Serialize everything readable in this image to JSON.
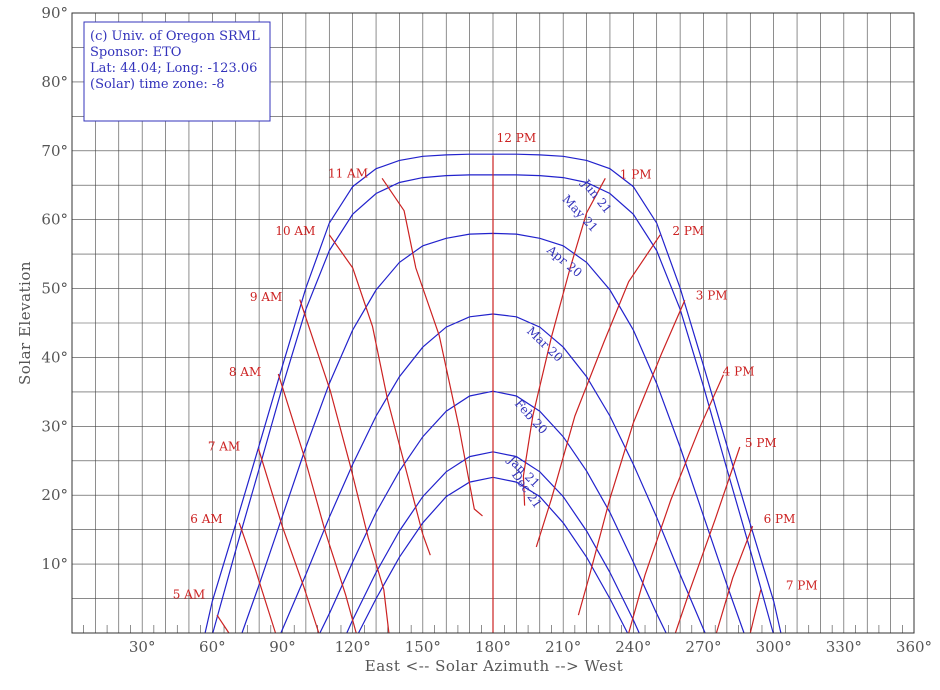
{
  "info_box": {
    "lines": [
      "(c) Univ. of Oregon SRML",
      "Sponsor: ETO",
      "Lat: 44.04; Long: -123.06",
      "(Solar) time zone: -8"
    ]
  },
  "chart_data": {
    "type": "line",
    "xlabel": "East <-- Solar Azimuth --> West",
    "ylabel": "Solar Elevation",
    "xlim": [
      0,
      360
    ],
    "ylim": [
      0,
      90
    ],
    "grid": true,
    "x_tick_labels": [
      {
        "value": 30,
        "label": "30°"
      },
      {
        "value": 60,
        "label": "60°"
      },
      {
        "value": 90,
        "label": "90°"
      },
      {
        "value": 120,
        "label": "120°"
      },
      {
        "value": 150,
        "label": "150°"
      },
      {
        "value": 180,
        "label": "180°"
      },
      {
        "value": 210,
        "label": "210°"
      },
      {
        "value": 240,
        "label": "240°"
      },
      {
        "value": 270,
        "label": "270°"
      },
      {
        "value": 300,
        "label": "300°"
      },
      {
        "value": 330,
        "label": "330°"
      },
      {
        "value": 360,
        "label": "360°"
      }
    ],
    "y_tick_labels": [
      {
        "value": 10,
        "label": "10°"
      },
      {
        "value": 20,
        "label": "20°"
      },
      {
        "value": 30,
        "label": "30°"
      },
      {
        "value": 40,
        "label": "40°"
      },
      {
        "value": 50,
        "label": "50°"
      },
      {
        "value": 60,
        "label": "60°"
      },
      {
        "value": 70,
        "label": "70°"
      },
      {
        "value": 80,
        "label": "80°"
      },
      {
        "value": 90,
        "label": "90°"
      }
    ],
    "colors": {
      "date_lines": "#2222cc",
      "hour_lines": "#cc2222",
      "grid": "#444444"
    },
    "date_series": [
      {
        "name": "Jun 21",
        "points": [
          [
            56.9,
            0
          ],
          [
            60,
            4.6
          ],
          [
            70,
            15.8
          ],
          [
            80,
            27.2
          ],
          [
            90,
            38.8
          ],
          [
            100,
            50.1
          ],
          [
            110,
            59.5
          ],
          [
            120,
            64.8
          ],
          [
            130,
            67.4
          ],
          [
            140,
            68.6
          ],
          [
            150,
            69.2
          ],
          [
            160,
            69.4
          ],
          [
            170,
            69.5
          ],
          [
            180,
            69.5
          ],
          [
            190,
            69.5
          ],
          [
            200,
            69.4
          ],
          [
            210,
            69.2
          ],
          [
            220,
            68.6
          ],
          [
            230,
            67.4
          ],
          [
            240,
            64.8
          ],
          [
            250,
            59.5
          ],
          [
            260,
            50.1
          ],
          [
            270,
            38.8
          ],
          [
            280,
            27.2
          ],
          [
            290,
            15.8
          ],
          [
            300,
            4.6
          ],
          [
            303.1,
            0
          ]
        ]
      },
      {
        "name": "May 21",
        "points": [
          [
            60.2,
            0
          ],
          [
            70,
            12
          ],
          [
            80,
            23.8
          ],
          [
            90,
            35.8
          ],
          [
            100,
            47
          ],
          [
            110,
            55.5
          ],
          [
            120,
            60.8
          ],
          [
            130,
            63.8
          ],
          [
            140,
            65.4
          ],
          [
            150,
            66.1
          ],
          [
            160,
            66.4
          ],
          [
            170,
            66.5
          ],
          [
            180,
            66.5
          ],
          [
            190,
            66.5
          ],
          [
            200,
            66.4
          ],
          [
            210,
            66.1
          ],
          [
            220,
            65.4
          ],
          [
            230,
            63.8
          ],
          [
            240,
            60.8
          ],
          [
            250,
            55.5
          ],
          [
            260,
            47
          ],
          [
            270,
            35.8
          ],
          [
            280,
            23.8
          ],
          [
            290,
            12
          ],
          [
            299.8,
            0
          ]
        ]
      },
      {
        "name": "Apr 20",
        "points": [
          [
            72.7,
            0
          ],
          [
            80,
            7
          ],
          [
            90,
            17
          ],
          [
            100,
            27
          ],
          [
            110,
            36.2
          ],
          [
            120,
            44
          ],
          [
            130,
            49.8
          ],
          [
            140,
            53.8
          ],
          [
            150,
            56.2
          ],
          [
            160,
            57.3
          ],
          [
            170,
            57.9
          ],
          [
            180,
            58
          ],
          [
            190,
            57.9
          ],
          [
            200,
            57.3
          ],
          [
            210,
            56.2
          ],
          [
            220,
            53.8
          ],
          [
            230,
            49.8
          ],
          [
            240,
            44
          ],
          [
            250,
            36.2
          ],
          [
            260,
            27
          ],
          [
            270,
            17
          ],
          [
            280,
            7
          ],
          [
            287.3,
            0
          ]
        ]
      },
      {
        "name": "Mar 20",
        "points": [
          [
            89.3,
            0
          ],
          [
            100,
            8.5
          ],
          [
            110,
            16.8
          ],
          [
            120,
            24.5
          ],
          [
            130,
            31.5
          ],
          [
            140,
            37.2
          ],
          [
            150,
            41.5
          ],
          [
            160,
            44.4
          ],
          [
            170,
            45.9
          ],
          [
            180,
            46.3
          ],
          [
            190,
            45.9
          ],
          [
            200,
            44.4
          ],
          [
            210,
            41.5
          ],
          [
            220,
            37.2
          ],
          [
            230,
            31.5
          ],
          [
            240,
            24.5
          ],
          [
            250,
            16.8
          ],
          [
            260,
            8.5
          ],
          [
            270.7,
            0
          ]
        ]
      },
      {
        "name": "Feb 20",
        "points": [
          [
            106,
            0
          ],
          [
            110,
            2.8
          ],
          [
            120,
            10.3
          ],
          [
            130,
            17.5
          ],
          [
            140,
            23.5
          ],
          [
            150,
            28.5
          ],
          [
            160,
            32.2
          ],
          [
            170,
            34.4
          ],
          [
            180,
            35.1
          ],
          [
            190,
            34.4
          ],
          [
            200,
            32.2
          ],
          [
            210,
            28.5
          ],
          [
            220,
            23.5
          ],
          [
            230,
            17.5
          ],
          [
            240,
            10.3
          ],
          [
            250,
            2.8
          ],
          [
            254,
            0
          ]
        ]
      },
      {
        "name": "Jan 21",
        "points": [
          [
            117.5,
            0
          ],
          [
            120,
            1.9
          ],
          [
            130,
            8.8
          ],
          [
            140,
            14.8
          ],
          [
            150,
            19.8
          ],
          [
            160,
            23.4
          ],
          [
            170,
            25.6
          ],
          [
            180,
            26.3
          ],
          [
            190,
            25.6
          ],
          [
            200,
            23.4
          ],
          [
            210,
            19.8
          ],
          [
            220,
            14.8
          ],
          [
            230,
            8.8
          ],
          [
            240,
            1.9
          ],
          [
            242.5,
            0
          ]
        ]
      },
      {
        "name": "Dec 21",
        "points": [
          [
            122.5,
            0
          ],
          [
            130,
            5
          ],
          [
            140,
            11
          ],
          [
            150,
            16
          ],
          [
            160,
            19.8
          ],
          [
            170,
            21.9
          ],
          [
            180,
            22.6
          ],
          [
            190,
            21.9
          ],
          [
            200,
            19.8
          ],
          [
            210,
            16
          ],
          [
            220,
            11
          ],
          [
            230,
            5
          ],
          [
            237.5,
            0
          ]
        ]
      }
    ],
    "hour_series": [
      {
        "name": "5 AM",
        "points": [
          [
            62,
            2.6
          ],
          [
            67.1,
            0
          ]
        ]
      },
      {
        "name": "6 AM",
        "points": [
          [
            71.5,
            16
          ],
          [
            78.4,
            9.2
          ],
          [
            87,
            0
          ]
        ]
      },
      {
        "name": "7 AM",
        "points": [
          [
            79.8,
            26.7
          ],
          [
            90,
            15.4
          ],
          [
            99,
            6.8
          ],
          [
            105.5,
            0
          ]
        ]
      },
      {
        "name": "8 AM",
        "points": [
          [
            88.2,
            37.6
          ],
          [
            99.5,
            25.4
          ],
          [
            108.4,
            14.6
          ],
          [
            117,
            5.5
          ],
          [
            121.5,
            0
          ]
        ]
      },
      {
        "name": "9 AM",
        "points": [
          [
            97.4,
            48.4
          ],
          [
            110.4,
            35.2
          ],
          [
            118.8,
            24.5
          ],
          [
            126.7,
            13.8
          ],
          [
            133.3,
            6.3
          ],
          [
            135.5,
            0
          ]
        ]
      },
      {
        "name": "10 AM",
        "points": [
          [
            110,
            57.8
          ],
          [
            120,
            53
          ],
          [
            128.5,
            44.5
          ],
          [
            135,
            33.7
          ],
          [
            143.5,
            22.8
          ],
          [
            150,
            14.3
          ],
          [
            153.2,
            11.3
          ]
        ]
      },
      {
        "name": "11 AM",
        "points": [
          [
            132.6,
            66
          ],
          [
            142,
            61.3
          ],
          [
            147,
            53
          ],
          [
            157,
            43.2
          ],
          [
            165.5,
            29.8
          ],
          [
            172,
            18
          ],
          [
            175.5,
            17
          ]
        ]
      },
      {
        "name": "12 PM",
        "points": [
          [
            180,
            69.3
          ],
          [
            180,
            0
          ]
        ]
      },
      {
        "name": "1 PM",
        "points": [
          [
            228,
            66
          ],
          [
            220,
            61
          ],
          [
            213,
            53
          ],
          [
            205,
            43
          ],
          [
            197,
            31.5
          ],
          [
            193,
            22.8
          ],
          [
            193.5,
            18.5
          ]
        ]
      },
      {
        "name": "2 PM",
        "points": [
          [
            251.5,
            57.8
          ],
          [
            238,
            51
          ],
          [
            227.5,
            42.3
          ],
          [
            215,
            31.5
          ],
          [
            205,
            19.5
          ],
          [
            198.5,
            12.5
          ]
        ]
      },
      {
        "name": "3 PM",
        "points": [
          [
            262,
            48.3
          ],
          [
            252,
            40.5
          ],
          [
            240,
            30.5
          ],
          [
            230,
            19.5
          ],
          [
            221.3,
            8.4
          ],
          [
            216.5,
            2.6
          ]
        ]
      },
      {
        "name": "4 PM",
        "points": [
          [
            278.5,
            37.5
          ],
          [
            268,
            29.5
          ],
          [
            256,
            19.3
          ],
          [
            245,
            8.4
          ],
          [
            238,
            0
          ]
        ]
      },
      {
        "name": "5 PM",
        "points": [
          [
            285.5,
            27
          ],
          [
            275,
            16.5
          ],
          [
            264.5,
            6.5
          ],
          [
            258,
            0
          ]
        ]
      },
      {
        "name": "6 PM",
        "points": [
          [
            291,
            15.5
          ],
          [
            282.5,
            8
          ],
          [
            275.5,
            0
          ]
        ]
      },
      {
        "name": "7 PM",
        "points": [
          [
            294.5,
            6.3
          ],
          [
            290,
            0
          ]
        ]
      }
    ],
    "hour_labels": [
      {
        "text": "5 AM",
        "x": 50,
        "y": 5
      },
      {
        "text": "6 AM",
        "x": 57.5,
        "y": 16
      },
      {
        "text": "7 AM",
        "x": 65,
        "y": 26.5
      },
      {
        "text": "8 AM",
        "x": 74,
        "y": 37.3
      },
      {
        "text": "9 AM",
        "x": 83,
        "y": 48.2
      },
      {
        "text": "10 AM",
        "x": 95.5,
        "y": 57.8
      },
      {
        "text": "11 AM",
        "x": 118,
        "y": 66.1
      },
      {
        "text": "12 PM",
        "x": 190,
        "y": 71.3
      },
      {
        "text": "1 PM",
        "x": 241,
        "y": 66
      },
      {
        "text": "2 PM",
        "x": 263.5,
        "y": 57.8
      },
      {
        "text": "3 PM",
        "x": 273.5,
        "y": 48.4
      },
      {
        "text": "4 PM",
        "x": 285,
        "y": 37.4
      },
      {
        "text": "5 PM",
        "x": 294.5,
        "y": 27
      },
      {
        "text": "6 PM",
        "x": 302.5,
        "y": 16
      },
      {
        "text": "7 PM",
        "x": 312,
        "y": 6.3
      }
    ],
    "date_labels": [
      {
        "text": "Jun 21",
        "x": 223,
        "y": 63,
        "angle": 51
      },
      {
        "text": "May 21",
        "x": 216,
        "y": 60.5,
        "angle": 47
      },
      {
        "text": "Apr 20",
        "x": 209.5,
        "y": 53.5,
        "angle": 40
      },
      {
        "text": "Mar 20",
        "x": 201,
        "y": 41.5,
        "angle": 44
      },
      {
        "text": "Feb 20",
        "x": 195,
        "y": 31,
        "angle": 48
      },
      {
        "text": "Jan 21",
        "x": 192,
        "y": 23,
        "angle": 45
      },
      {
        "text": "Dec 21",
        "x": 193,
        "y": 20.5,
        "angle": 55
      }
    ]
  }
}
